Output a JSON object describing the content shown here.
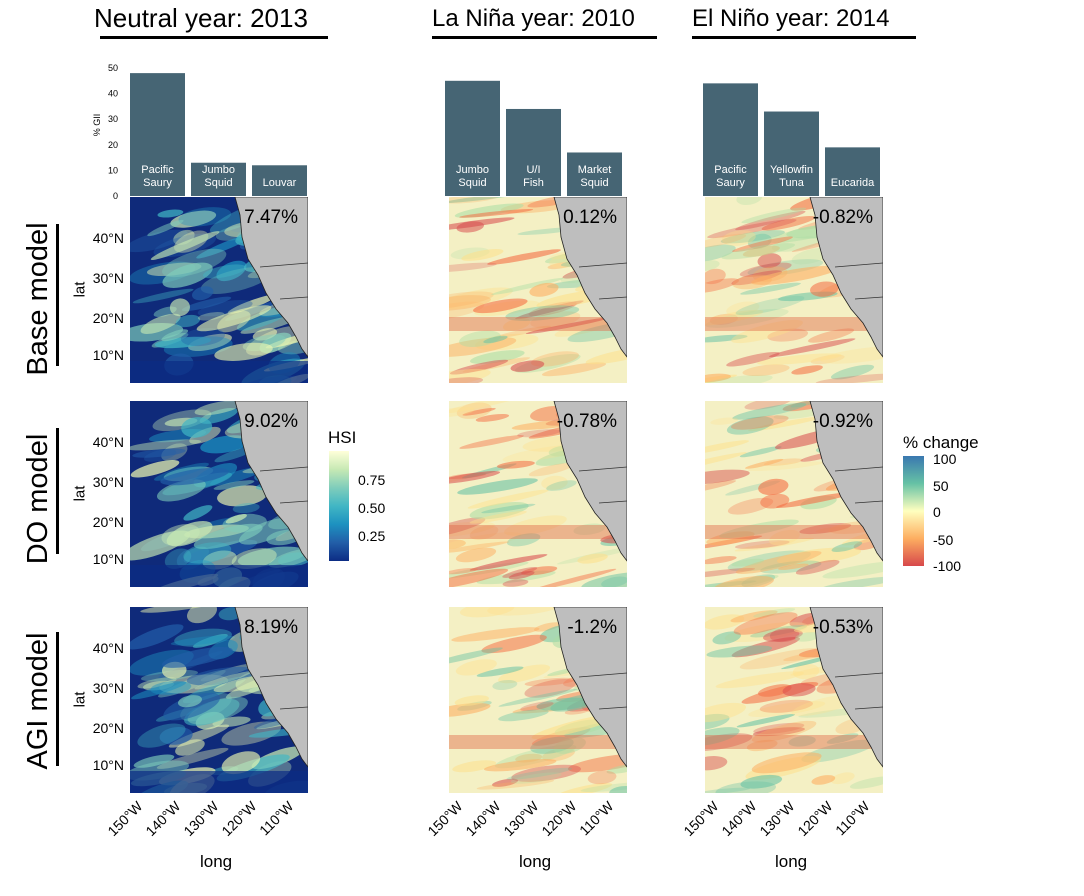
{
  "columns": [
    {
      "title": "Neutral year: 2013"
    },
    {
      "title": "La Niña year: 2010"
    },
    {
      "title": "El Niño year: 2014"
    }
  ],
  "rows": [
    {
      "title": "Base model"
    },
    {
      "title": "DO model"
    },
    {
      "title": "AGI model"
    }
  ],
  "chart_data": [
    {
      "type": "bar",
      "panel": "Neutral year: 2013",
      "categories": [
        "Pacific Saury",
        "Jumbo Squid",
        "Louvar"
      ],
      "values": [
        48,
        13,
        12
      ],
      "ylabel": "% GII",
      "ylim": [
        0,
        50
      ],
      "yticks": [
        "0",
        "10",
        "20",
        "30",
        "40",
        "50"
      ],
      "bar_color": "#466574"
    },
    {
      "type": "bar",
      "panel": "La Niña year: 2010",
      "categories": [
        "Jumbo Squid",
        "U/I Fish",
        "Market Squid"
      ],
      "values": [
        45,
        34,
        17
      ],
      "bar_color": "#466574"
    },
    {
      "type": "bar",
      "panel": "El Niño year: 2014",
      "categories": [
        "Pacific Saury",
        "Yellowfin Tuna",
        "Eucarida"
      ],
      "values": [
        44,
        33,
        19
      ],
      "bar_color": "#466574"
    },
    {
      "type": "heatmap",
      "panels": [
        {
          "column": "Neutral year: 2013",
          "row": "Base model",
          "label": "7.47%"
        },
        {
          "column": "La Niña year: 2010",
          "row": "Base model",
          "label": "0.12%"
        },
        {
          "column": "El Niño year: 2014",
          "row": "Base model",
          "label": "-0.82%"
        },
        {
          "column": "Neutral year: 2013",
          "row": "DO model",
          "label": "9.02%"
        },
        {
          "column": "La Niña year: 2010",
          "row": "DO model",
          "label": "-0.78%"
        },
        {
          "column": "El Niño year: 2014",
          "row": "DO model",
          "label": "-0.92%"
        },
        {
          "column": "Neutral year: 2013",
          "row": "AGI model",
          "label": "8.19%"
        },
        {
          "column": "La Niña year: 2010",
          "row": "AGI model",
          "label": "-1.2%"
        },
        {
          "column": "El Niño year: 2014",
          "row": "AGI model",
          "label": "-0.53%"
        }
      ],
      "ylabel": "lat",
      "xlabel": "long",
      "lat_ticks": [
        "40°N",
        "30°N",
        "20°N",
        "10°N"
      ],
      "lon_ticks": [
        "150°W",
        "140°W",
        "130°W",
        "120°W",
        "110°W"
      ],
      "land_color": "#bebebe"
    }
  ],
  "legends": {
    "hsi": {
      "title": "HSI",
      "ticks": [
        "0.75",
        "0.50",
        "0.25"
      ],
      "colors": [
        "#ffffd9",
        "#c7e9b4",
        "#7fcdbb",
        "#41b6c4",
        "#1d91c0",
        "#225ea8",
        "#0c2c84"
      ]
    },
    "change": {
      "title": "% change",
      "ticks": [
        "100",
        "50",
        "0",
        "-50",
        "-100"
      ],
      "colors": [
        "#3a78b0",
        "#66c2a5",
        "#ffffbf",
        "#fdae61",
        "#d7484b"
      ]
    }
  }
}
